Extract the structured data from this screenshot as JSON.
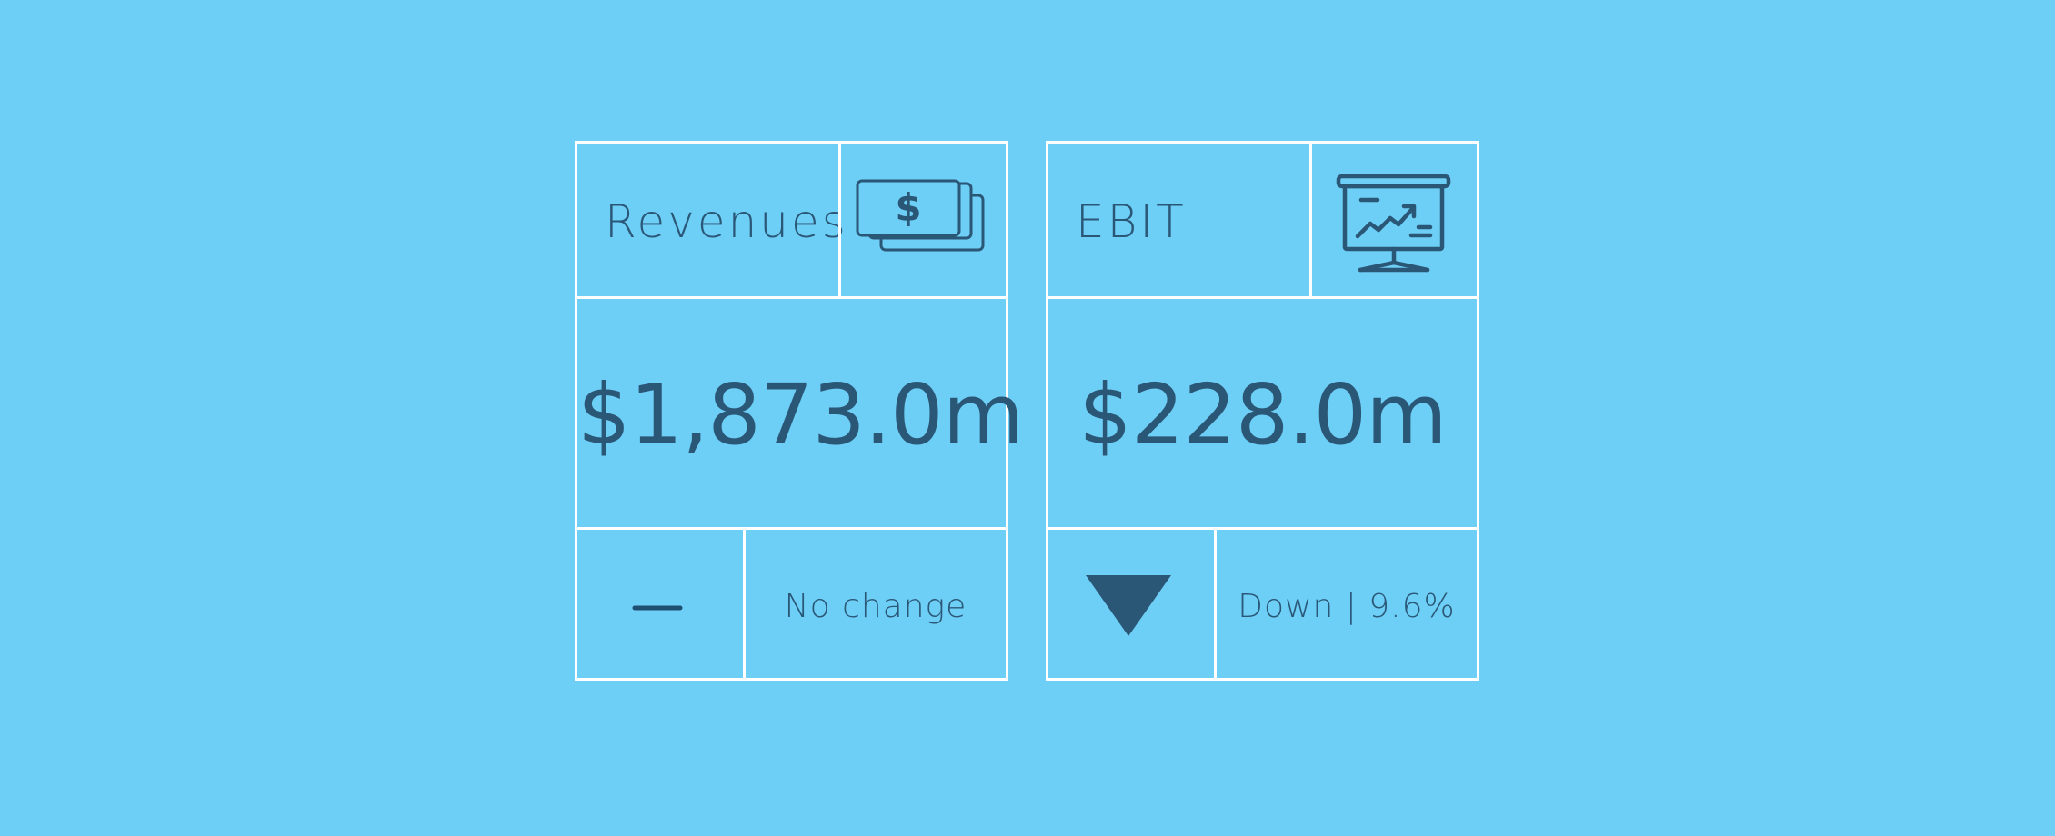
{
  "colors": {
    "background": "#6dcef6",
    "border": "#ffffff",
    "text": "#2b5777"
  },
  "cards": [
    {
      "title": "Revenues",
      "icon": "money-stack-icon",
      "value": "$1,873.0m",
      "indicator": "dash-icon",
      "status": "No change"
    },
    {
      "title": "EBIT",
      "icon": "presentation-chart-icon",
      "value": "$228.0m",
      "indicator": "down-triangle-icon",
      "status": "Down | 9.6%"
    }
  ]
}
